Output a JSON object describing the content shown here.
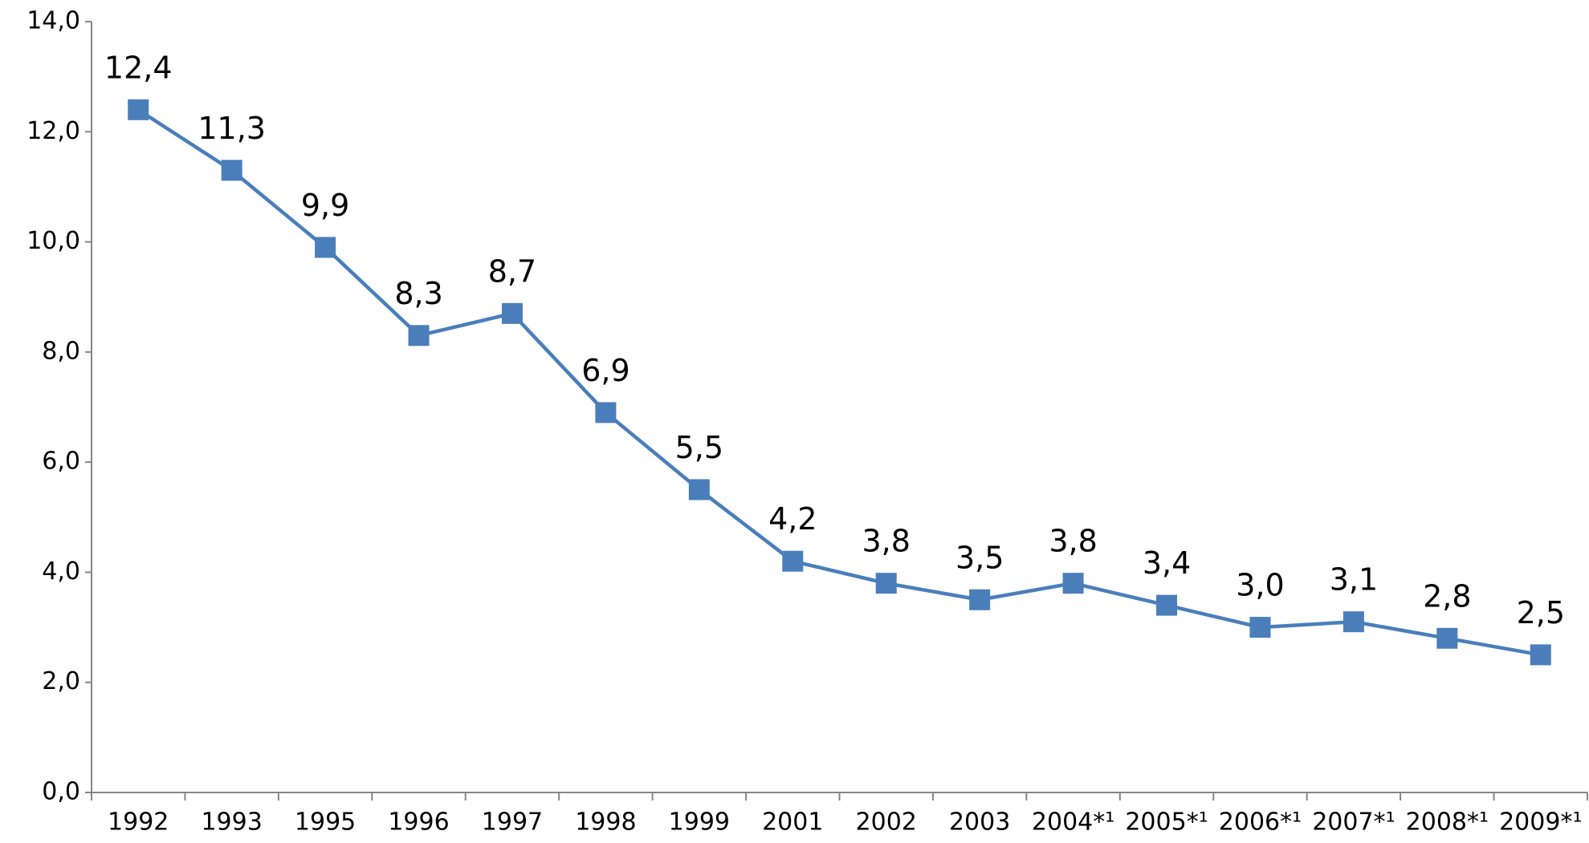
{
  "chart_data": {
    "type": "line",
    "categories": [
      "1992",
      "1993",
      "1995",
      "1996",
      "1997",
      "1998",
      "1999",
      "2001",
      "2002",
      "2003",
      "2004*¹",
      "2005*¹",
      "2006*¹",
      "2007*¹",
      "2008*¹",
      "2009*¹"
    ],
    "series": [
      {
        "color": "#4a7ebb",
        "values": [
          12.4,
          11.3,
          9.9,
          8.3,
          8.7,
          6.9,
          5.5,
          4.2,
          3.8,
          3.5,
          3.8,
          3.4,
          3.0,
          3.1,
          2.8,
          2.5
        ],
        "value_labels": [
          "12,4",
          "11,3",
          "9,9",
          "8,3",
          "8,7",
          "6,9",
          "5,5",
          "4,2",
          "3,8",
          "3,5",
          "3,8",
          "3,4",
          "3,0",
          "3,1",
          "2,8",
          "2,5"
        ]
      }
    ],
    "ylim": [
      0,
      14
    ],
    "yticks": [
      {
        "value": 0,
        "label": "0,0"
      },
      {
        "value": 2,
        "label": "2,0"
      },
      {
        "value": 4,
        "label": "4,0"
      },
      {
        "value": 6,
        "label": "6,0"
      },
      {
        "value": 8,
        "label": "8,0"
      },
      {
        "value": 10,
        "label": "10,0"
      },
      {
        "value": 12,
        "label": "12,0"
      },
      {
        "value": 14,
        "label": "14,0"
      }
    ],
    "grid": false
  }
}
